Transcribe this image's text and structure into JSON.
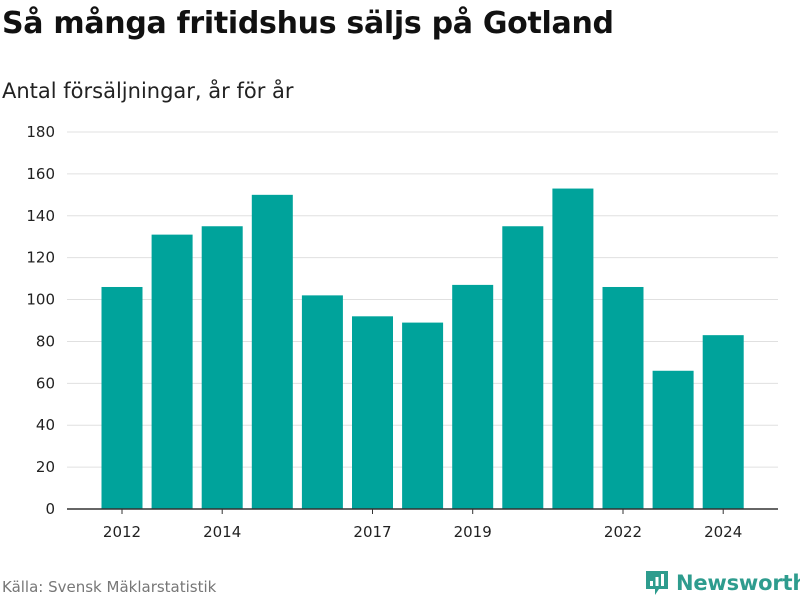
{
  "title": "Så många fritidshus säljs på Gotland",
  "subtitle": "Antal försäljningar, år för år",
  "source": "Källa: Svensk Mäklarstatistik",
  "logo_text": "Newsworthy",
  "colors": {
    "bar": "#00a39b",
    "grid": "#e0e0e0",
    "axis": "#333333",
    "brand": "#2e9c8e"
  },
  "chart_data": {
    "type": "bar",
    "categories": [
      2012,
      2013,
      2014,
      2015,
      2016,
      2017,
      2018,
      2019,
      2020,
      2021,
      2022,
      2023,
      2024
    ],
    "values": [
      106,
      131,
      135,
      150,
      102,
      92,
      89,
      107,
      135,
      153,
      106,
      66,
      83
    ],
    "x_tick_labels": [
      "2012",
      "2014",
      "2017",
      "2019",
      "2022",
      "2024"
    ],
    "y_ticks": [
      0,
      20,
      40,
      60,
      80,
      100,
      120,
      140,
      160,
      180
    ],
    "ylim": [
      0,
      180
    ],
    "title": "Så många fritidshus säljs på Gotland",
    "subtitle": "Antal försäljningar, år för år",
    "xlabel": "",
    "ylabel": "",
    "grid": true,
    "legend": false
  }
}
